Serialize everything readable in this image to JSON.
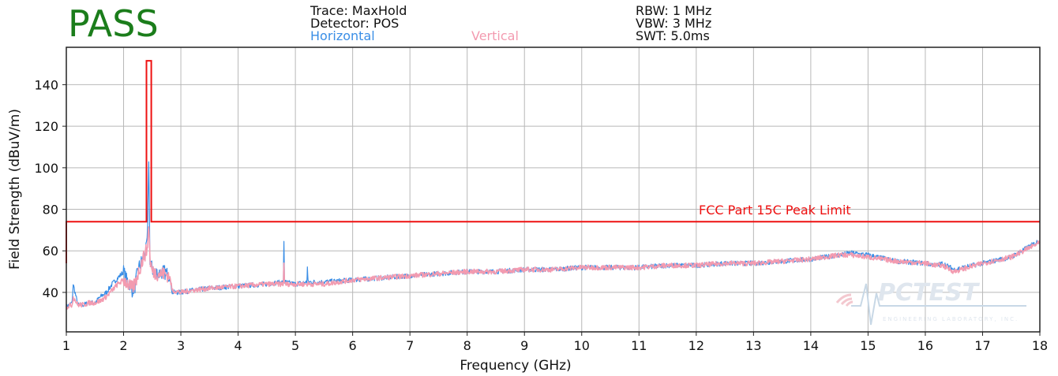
{
  "result": "PASS",
  "header": {
    "trace": "Trace: MaxHold",
    "detector": "Detector: POS",
    "horizontal": "Horizontal",
    "vertical": "Vertical",
    "rbw": "RBW: 1 MHz",
    "vbw": "VBW: 3 MHz",
    "swt": "SWT: 5.0ms"
  },
  "watermark": "PCTEST ENGINEERING LABORATORY, INC.",
  "chart_data": {
    "type": "line",
    "xlabel": "Frequency (GHz)",
    "ylabel": "Field Strength (dBuV/m)",
    "xlim": [
      1,
      18
    ],
    "ylim": [
      21,
      158
    ],
    "xticks": [
      1,
      2,
      3,
      4,
      5,
      6,
      7,
      8,
      9,
      10,
      11,
      12,
      13,
      14,
      15,
      16,
      17,
      18
    ],
    "yticks": [
      40,
      60,
      80,
      100,
      120,
      140
    ],
    "grid": true,
    "colors": {
      "horizontal": "#3a8ee6",
      "vertical": "#f39bb0",
      "limit": "#ee1111"
    },
    "limit": {
      "name": "FCC Part 15C Peak Limit",
      "x": [
        1.0,
        1.0,
        2.4,
        2.4,
        2.4835,
        2.4835,
        18.0
      ],
      "y": [
        54,
        74,
        74,
        151.5,
        151.5,
        74,
        74
      ]
    },
    "series": [
      {
        "name": "Horizontal",
        "x": [
          1.0,
          1.1,
          1.12,
          1.2,
          1.3,
          1.4,
          1.5,
          1.6,
          1.7,
          1.8,
          1.9,
          2.0,
          2.05,
          2.1,
          2.15,
          2.2,
          2.25,
          2.3,
          2.35,
          2.4,
          2.42,
          2.44,
          2.46,
          2.5,
          2.6,
          2.7,
          2.8,
          2.85,
          3.0,
          3.2,
          3.5,
          4.0,
          4.5,
          4.79,
          4.8,
          4.81,
          5.0,
          5.2,
          5.21,
          5.22,
          5.5,
          6.0,
          6.5,
          7.0,
          7.5,
          8.0,
          8.5,
          9.0,
          9.5,
          10.0,
          10.5,
          11.0,
          11.5,
          12.0,
          12.5,
          13.0,
          13.5,
          14.0,
          14.5,
          14.7,
          15.0,
          15.5,
          16.0,
          16.2,
          16.3,
          16.5,
          17.0,
          17.5,
          18.0
        ],
        "y": [
          33,
          35,
          44,
          34,
          34,
          35,
          35,
          38,
          40,
          44,
          47,
          50,
          46,
          45,
          41,
          43,
          51,
          54,
          57,
          61,
          70,
          105,
          56,
          51,
          49,
          50,
          48,
          40,
          40,
          41,
          42,
          43,
          44,
          45,
          65,
          45,
          44,
          45,
          52,
          45,
          45,
          46,
          47,
          48,
          49,
          50,
          50,
          51,
          51,
          52,
          52,
          52,
          53,
          53,
          54,
          54,
          55,
          56,
          58,
          59,
          58,
          55,
          54,
          53,
          54,
          51,
          54,
          57,
          65
        ]
      },
      {
        "name": "Vertical",
        "x": [
          1.0,
          1.1,
          1.12,
          1.2,
          1.3,
          1.4,
          1.5,
          1.6,
          1.7,
          1.8,
          1.9,
          2.0,
          2.05,
          2.1,
          2.15,
          2.2,
          2.25,
          2.3,
          2.35,
          2.4,
          2.42,
          2.44,
          2.46,
          2.5,
          2.6,
          2.7,
          2.8,
          2.85,
          3.0,
          3.2,
          3.5,
          4.0,
          4.5,
          4.79,
          4.8,
          4.81,
          5.0,
          5.5,
          6.0,
          6.5,
          7.0,
          7.5,
          8.0,
          8.5,
          9.0,
          9.5,
          10.0,
          10.5,
          11.0,
          11.5,
          12.0,
          12.5,
          13.0,
          13.5,
          14.0,
          14.5,
          14.7,
          15.0,
          15.5,
          16.0,
          16.2,
          16.3,
          16.5,
          17.0,
          17.5,
          18.0
        ],
        "y": [
          33,
          34,
          38,
          34,
          34,
          35,
          35,
          36,
          38,
          41,
          44,
          46,
          45,
          43,
          42,
          44,
          49,
          53,
          57,
          60,
          63,
          74,
          56,
          50,
          49,
          49,
          48,
          41,
          40,
          41,
          42,
          43,
          44,
          44,
          55,
          44,
          44,
          44,
          46,
          47,
          48,
          49,
          50,
          50,
          51,
          51,
          52,
          52,
          52,
          53,
          53,
          54,
          54,
          55,
          56,
          58,
          58,
          57,
          55,
          54,
          53,
          53,
          50,
          54,
          57,
          64
        ]
      }
    ]
  }
}
